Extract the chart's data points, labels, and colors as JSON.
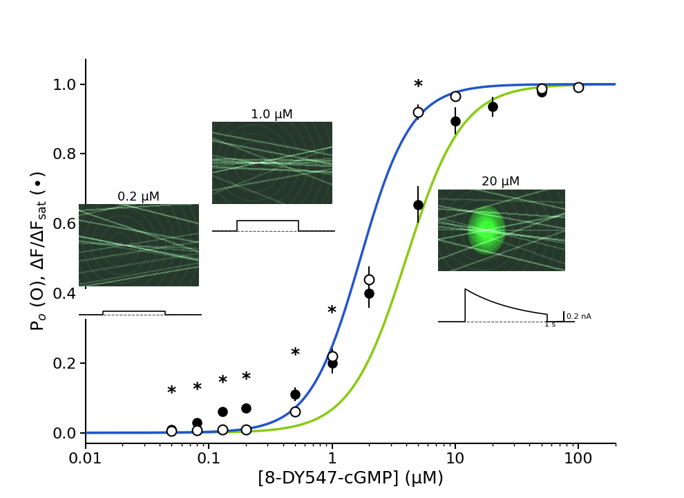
{
  "xlabel": "[8-DY547-cGMP] (μM)",
  "ylabel": "P$_o$ (O), $\\Delta$F/$\\Delta$F$_{sat}$ ($\\bullet$)",
  "open_circles_x": [
    0.05,
    0.08,
    0.13,
    0.2,
    0.5,
    1.0,
    2.0,
    5.0,
    10.0,
    50.0,
    100.0
  ],
  "open_circles_y": [
    0.005,
    0.008,
    0.01,
    0.01,
    0.06,
    0.22,
    0.44,
    0.92,
    0.965,
    0.988,
    0.992
  ],
  "open_circles_yerr": [
    0.004,
    0.005,
    0.005,
    0.006,
    0.012,
    0.022,
    0.038,
    0.022,
    0.012,
    0.005,
    0.003
  ],
  "filled_circles_x": [
    0.05,
    0.08,
    0.13,
    0.2,
    0.5,
    1.0,
    2.0,
    5.0,
    10.0,
    20.0,
    50.0
  ],
  "filled_circles_y": [
    0.01,
    0.03,
    0.06,
    0.07,
    0.11,
    0.2,
    0.4,
    0.655,
    0.895,
    0.935,
    0.978
  ],
  "filled_circles_yerr": [
    0.005,
    0.01,
    0.012,
    0.014,
    0.02,
    0.03,
    0.042,
    0.052,
    0.038,
    0.028,
    0.01
  ],
  "asterisk_positions": [
    [
      0.05,
      0.08
    ],
    [
      0.08,
      0.1
    ],
    [
      0.13,
      0.12
    ],
    [
      0.2,
      0.12
    ],
    [
      0.5,
      0.17
    ],
    [
      1.0,
      0.3
    ],
    [
      5.0,
      0.99
    ]
  ],
  "blue_line_color": "#2255cc",
  "green_line_color": "#88cc11",
  "K_blue": 1.7,
  "n_blue": 2.1,
  "K_green": 4.0,
  "n_green": 1.9,
  "xlim": [
    0.01,
    200
  ],
  "ylim": [
    -0.03,
    1.07
  ],
  "xticks": [
    0.01,
    0.1,
    1,
    10,
    100
  ],
  "yticks": [
    0.0,
    0.2,
    0.4,
    0.6,
    0.8,
    1.0
  ],
  "marker_size": 9,
  "linewidth": 2.5,
  "fontsize_ticks": 16,
  "fontsize_label": 18,
  "fontsize_asterisk": 18,
  "background_color": "#ffffff"
}
